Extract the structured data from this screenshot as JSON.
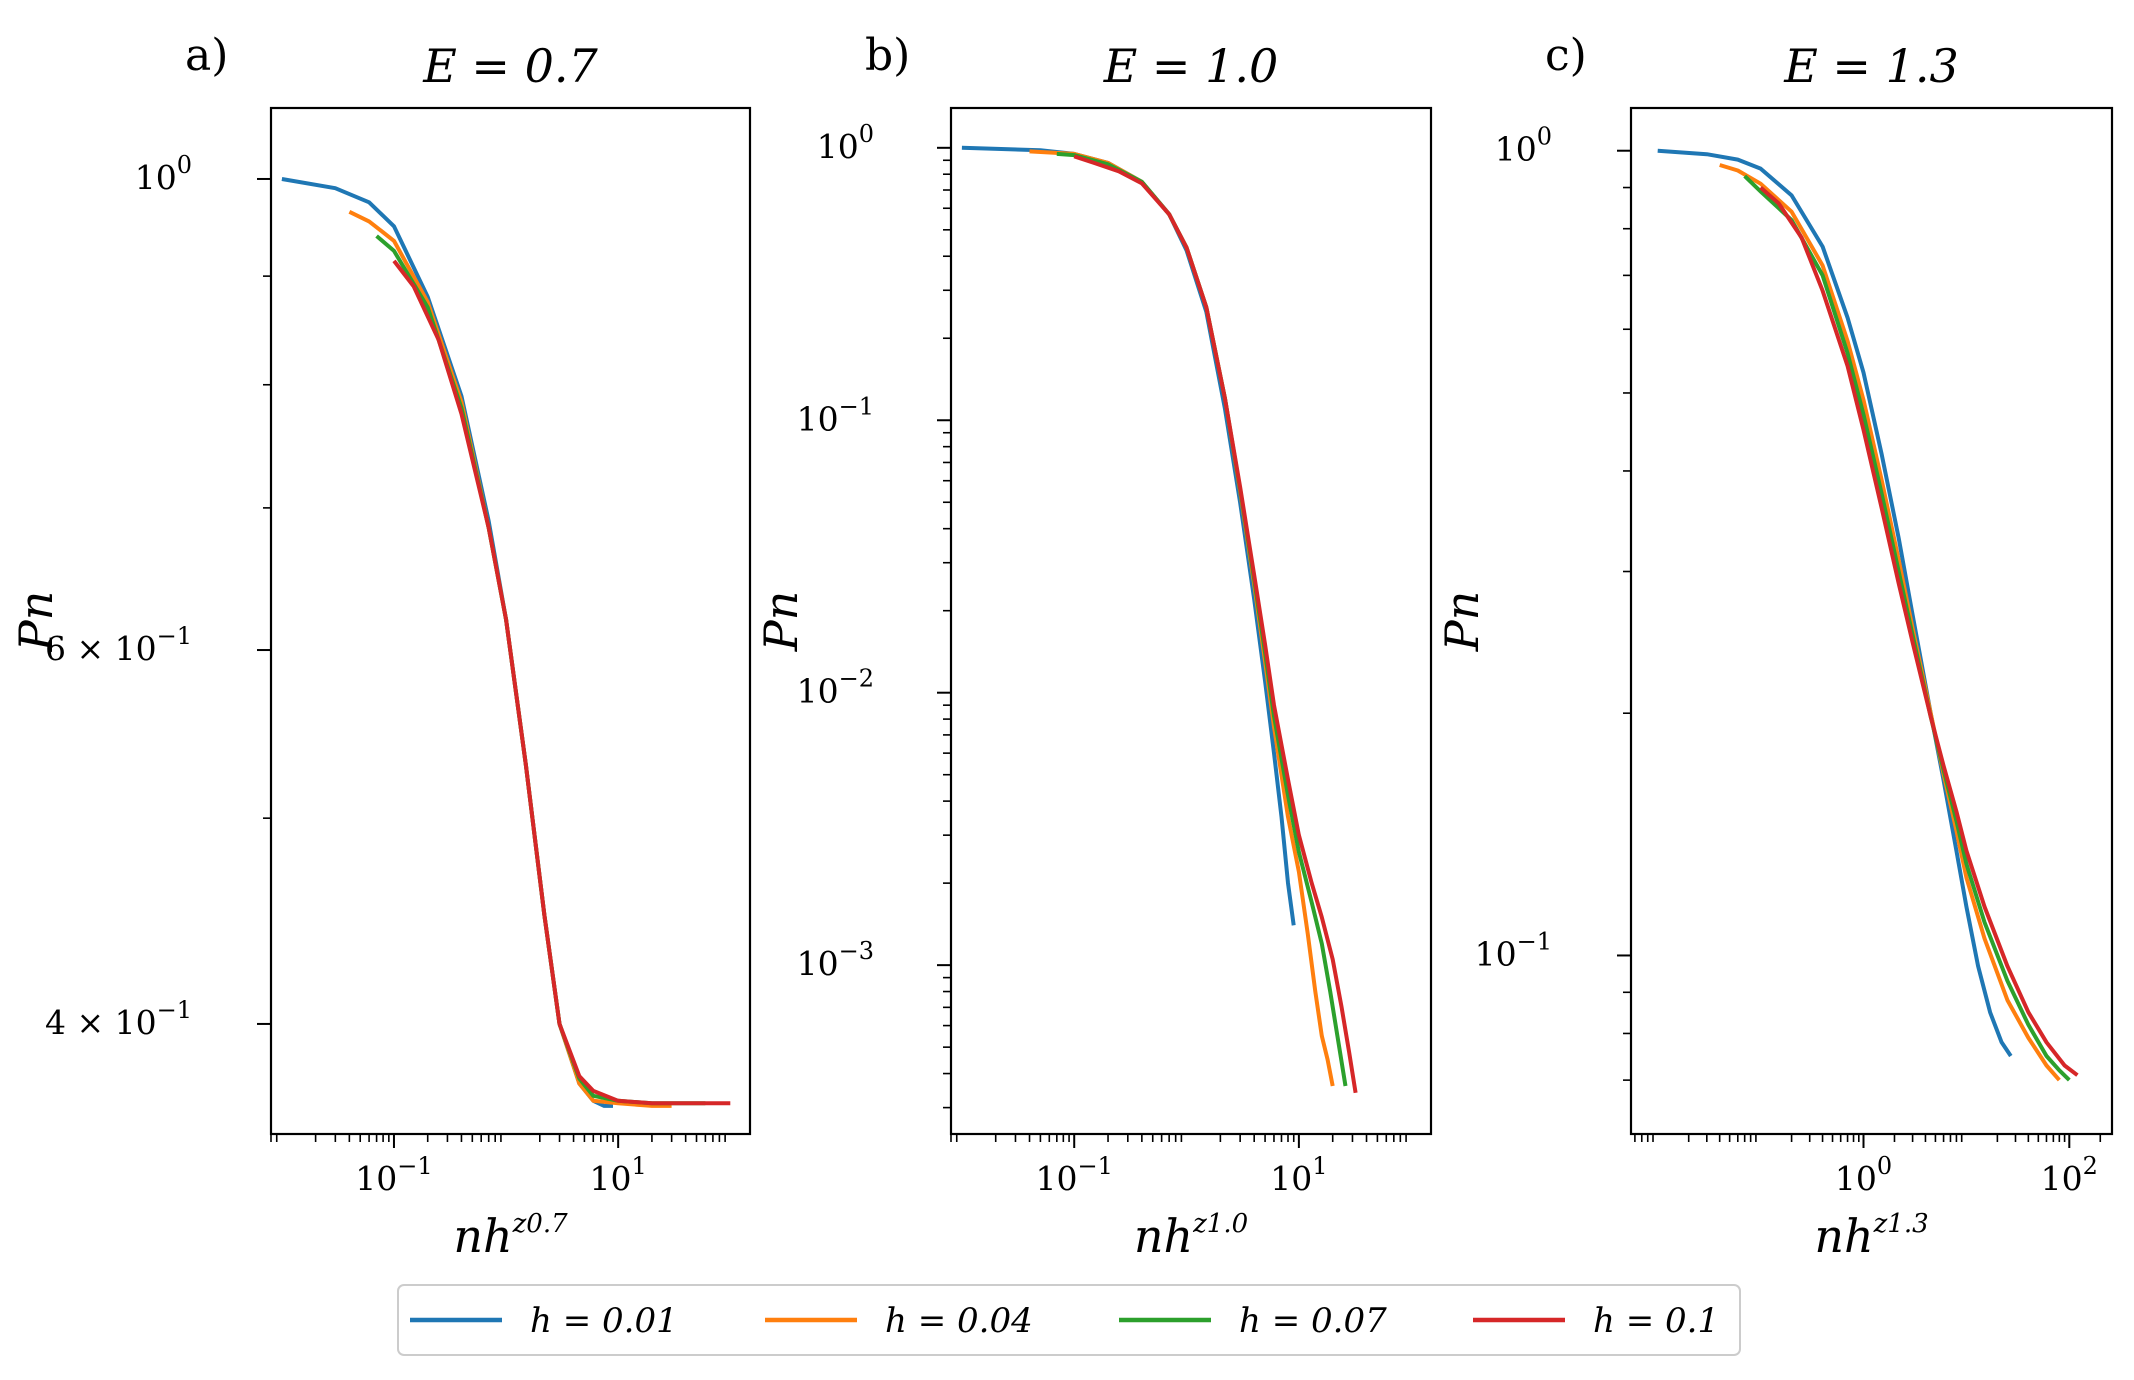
{
  "chart_data": [
    {
      "type": "line",
      "panel_label": "a)",
      "title": "E = 0.7",
      "xlabel": "nh",
      "xlabel_sup": "z0.7",
      "ylabel": "Pn",
      "xscale": "log",
      "yscale": "log",
      "xlim": [
        0.008,
        150
      ],
      "ylim": [
        0.355,
        1.08
      ],
      "xticks": [
        {
          "value": 0.1,
          "base": "10",
          "exp": "−1"
        },
        {
          "value": 10,
          "base": "10",
          "exp": "1"
        }
      ],
      "yticks": [
        {
          "value": 1.0,
          "base": "10",
          "exp": "0",
          "prefix": ""
        },
        {
          "value": 0.6,
          "base": "10",
          "exp": "−1",
          "prefix": "6 × "
        },
        {
          "value": 0.4,
          "base": "10",
          "exp": "−1",
          "prefix": "4 × "
        }
      ],
      "yminor": [
        0.5,
        0.7,
        0.8,
        0.9
      ],
      "series": [
        {
          "name": "h = 0.01",
          "color": "#1f77b4",
          "x": [
            0.01,
            0.03,
            0.06,
            0.1,
            0.2,
            0.4,
            0.7,
            1.0,
            1.5,
            2.2,
            3.0,
            4.5,
            6.0,
            7.5,
            9.0
          ],
          "y": [
            1.0,
            0.99,
            0.975,
            0.95,
            0.88,
            0.79,
            0.69,
            0.62,
            0.53,
            0.45,
            0.4,
            0.375,
            0.368,
            0.366,
            0.366
          ]
        },
        {
          "name": "h = 0.04",
          "color": "#ff7f0e",
          "x": [
            0.04,
            0.06,
            0.1,
            0.2,
            0.4,
            0.7,
            1.0,
            1.5,
            2.2,
            3.0,
            4.5,
            6.0,
            10,
            20,
            30
          ],
          "y": [
            0.965,
            0.955,
            0.935,
            0.875,
            0.785,
            0.685,
            0.62,
            0.53,
            0.45,
            0.4,
            0.375,
            0.368,
            0.367,
            0.366,
            0.366
          ]
        },
        {
          "name": "h = 0.07",
          "color": "#2ca02c",
          "x": [
            0.07,
            0.1,
            0.2,
            0.4,
            0.7,
            1.0,
            1.5,
            2.2,
            3.0,
            4.5,
            6.0,
            10,
            20,
            40,
            60
          ],
          "y": [
            0.94,
            0.925,
            0.87,
            0.78,
            0.685,
            0.62,
            0.53,
            0.45,
            0.4,
            0.377,
            0.37,
            0.368,
            0.367,
            0.367,
            0.367
          ]
        },
        {
          "name": "h = 0.1",
          "color": "#d62728",
          "x": [
            0.1,
            0.15,
            0.25,
            0.4,
            0.7,
            1.0,
            1.5,
            2.2,
            3.0,
            4.5,
            6.0,
            10,
            20,
            50,
            100
          ],
          "y": [
            0.915,
            0.89,
            0.84,
            0.775,
            0.685,
            0.62,
            0.53,
            0.45,
            0.4,
            0.378,
            0.372,
            0.368,
            0.367,
            0.367,
            0.367
          ]
        }
      ]
    },
    {
      "type": "line",
      "panel_label": "b)",
      "title": "E = 1.0",
      "xlabel": "nh",
      "xlabel_sup": "z1.0",
      "ylabel": "Pn",
      "xscale": "log",
      "yscale": "log",
      "xlim": [
        0.008,
        150
      ],
      "ylim": [
        0.00024,
        1.4
      ],
      "xticks": [
        {
          "value": 0.1,
          "base": "10",
          "exp": "−1"
        },
        {
          "value": 10,
          "base": "10",
          "exp": "1"
        }
      ],
      "yticks": [
        {
          "value": 1.0,
          "base": "10",
          "exp": "0",
          "prefix": ""
        },
        {
          "value": 0.1,
          "base": "10",
          "exp": "−1",
          "prefix": ""
        },
        {
          "value": 0.01,
          "base": "10",
          "exp": "−2",
          "prefix": ""
        },
        {
          "value": 0.001,
          "base": "10",
          "exp": "−3",
          "prefix": ""
        }
      ],
      "yminor": [
        0.0003,
        0.0004,
        0.0005,
        0.0006,
        0.0007,
        0.0008,
        0.0009,
        0.002,
        0.003,
        0.004,
        0.005,
        0.006,
        0.007,
        0.008,
        0.009,
        0.02,
        0.03,
        0.04,
        0.05,
        0.06,
        0.07,
        0.08,
        0.09,
        0.2,
        0.3,
        0.4,
        0.5,
        0.6,
        0.7,
        0.8,
        0.9
      ],
      "series": [
        {
          "name": "h = 0.01",
          "color": "#1f77b4",
          "x": [
            0.01,
            0.05,
            0.1,
            0.2,
            0.4,
            0.7,
            1.0,
            1.5,
            2.2,
            3.0,
            4.0,
            5.0,
            6.0,
            7.0,
            8.0,
            9.0
          ],
          "y": [
            1.0,
            0.98,
            0.95,
            0.88,
            0.75,
            0.57,
            0.42,
            0.25,
            0.11,
            0.05,
            0.022,
            0.011,
            0.006,
            0.0035,
            0.002,
            0.0014
          ]
        },
        {
          "name": "h = 0.04",
          "color": "#ff7f0e",
          "x": [
            0.04,
            0.1,
            0.2,
            0.4,
            0.7,
            1.0,
            1.5,
            2.2,
            3.0,
            4.0,
            5.0,
            6.0,
            8.0,
            10.0,
            12.0,
            14.0,
            16.0,
            18.0,
            20.0
          ],
          "y": [
            0.97,
            0.95,
            0.88,
            0.75,
            0.57,
            0.43,
            0.26,
            0.12,
            0.055,
            0.025,
            0.013,
            0.0075,
            0.0035,
            0.0022,
            0.0013,
            0.0008,
            0.00055,
            0.00045,
            0.00036
          ]
        },
        {
          "name": "h = 0.07",
          "color": "#2ca02c",
          "x": [
            0.07,
            0.1,
            0.2,
            0.4,
            0.7,
            1.0,
            1.5,
            2.2,
            3.0,
            4.0,
            5.0,
            6.0,
            8.0,
            10.0,
            13.0,
            16.0,
            19.0,
            22.0,
            26.0
          ],
          "y": [
            0.95,
            0.94,
            0.87,
            0.75,
            0.57,
            0.43,
            0.26,
            0.12,
            0.056,
            0.026,
            0.014,
            0.0082,
            0.0042,
            0.0026,
            0.0017,
            0.0012,
            0.0008,
            0.00055,
            0.00036
          ]
        },
        {
          "name": "h = 0.1",
          "color": "#d62728",
          "x": [
            0.1,
            0.15,
            0.25,
            0.4,
            0.7,
            1.0,
            1.5,
            2.2,
            3.0,
            4.0,
            5.0,
            6.0,
            8.0,
            10.0,
            13.0,
            16.0,
            20.0,
            24.0,
            28.0,
            32.0
          ],
          "y": [
            0.93,
            0.88,
            0.82,
            0.74,
            0.57,
            0.43,
            0.26,
            0.12,
            0.057,
            0.027,
            0.015,
            0.009,
            0.0048,
            0.003,
            0.002,
            0.0015,
            0.00105,
            0.0007,
            0.00048,
            0.00034
          ]
        }
      ]
    },
    {
      "type": "line",
      "panel_label": "c)",
      "title": "E = 1.3",
      "xlabel": "nh",
      "xlabel_sup": "z1.3",
      "ylabel": "Pn",
      "xscale": "log",
      "yscale": "log",
      "xlim": [
        0.0055,
        260
      ],
      "ylim": [
        0.06,
        1.13
      ],
      "xticks": [
        {
          "value": 1,
          "base": "10",
          "exp": "0"
        },
        {
          "value": 100,
          "base": "10",
          "exp": "2"
        }
      ],
      "yticks": [
        {
          "value": 1.0,
          "base": "10",
          "exp": "0",
          "prefix": ""
        },
        {
          "value": 0.1,
          "base": "10",
          "exp": "−1",
          "prefix": ""
        }
      ],
      "yminor": [
        0.07,
        0.08,
        0.09,
        0.2,
        0.3,
        0.4,
        0.5,
        0.6,
        0.7,
        0.8,
        0.9
      ],
      "series": [
        {
          "name": "h = 0.01",
          "color": "#1f77b4",
          "x": [
            0.01,
            0.03,
            0.06,
            0.1,
            0.2,
            0.4,
            0.7,
            1.0,
            1.5,
            2.2,
            3.0,
            4.5,
            6.0,
            8.0,
            10.0,
            13.0,
            17.0,
            22.0,
            27.0
          ],
          "y": [
            1.0,
            0.99,
            0.975,
            0.95,
            0.88,
            0.76,
            0.62,
            0.53,
            0.42,
            0.33,
            0.265,
            0.2,
            0.165,
            0.135,
            0.115,
            0.097,
            0.085,
            0.078,
            0.075
          ]
        },
        {
          "name": "h = 0.04",
          "color": "#ff7f0e",
          "x": [
            0.04,
            0.06,
            0.1,
            0.2,
            0.4,
            0.7,
            1.0,
            1.5,
            2.2,
            3.0,
            4.5,
            6.0,
            8.0,
            10.0,
            15.0,
            25.0,
            40.0,
            60.0,
            80.0
          ],
          "y": [
            0.96,
            0.945,
            0.91,
            0.84,
            0.72,
            0.58,
            0.49,
            0.39,
            0.31,
            0.255,
            0.2,
            0.168,
            0.143,
            0.125,
            0.105,
            0.088,
            0.079,
            0.073,
            0.07
          ]
        },
        {
          "name": "h = 0.07",
          "color": "#2ca02c",
          "x": [
            0.07,
            0.1,
            0.2,
            0.4,
            0.7,
            1.0,
            1.5,
            2.2,
            3.0,
            4.5,
            6.0,
            8.0,
            10.0,
            15.0,
            25.0,
            40.0,
            60.0,
            80.0,
            100.0
          ],
          "y": [
            0.93,
            0.89,
            0.82,
            0.7,
            0.56,
            0.47,
            0.375,
            0.3,
            0.25,
            0.198,
            0.17,
            0.147,
            0.13,
            0.11,
            0.093,
            0.082,
            0.075,
            0.072,
            0.07
          ]
        },
        {
          "name": "h = 0.1",
          "color": "#d62728",
          "x": [
            0.1,
            0.15,
            0.25,
            0.4,
            0.7,
            1.0,
            1.5,
            2.2,
            3.0,
            4.5,
            6.0,
            8.0,
            10.0,
            15.0,
            25.0,
            40.0,
            60.0,
            90.0,
            120.0
          ],
          "y": [
            0.9,
            0.86,
            0.78,
            0.67,
            0.54,
            0.45,
            0.36,
            0.29,
            0.245,
            0.198,
            0.172,
            0.151,
            0.135,
            0.115,
            0.097,
            0.085,
            0.078,
            0.073,
            0.071
          ]
        }
      ]
    }
  ],
  "legend": [
    {
      "label": "h = 0.01",
      "color": "#1f77b4"
    },
    {
      "label": "h = 0.04",
      "color": "#ff7f0e"
    },
    {
      "label": "h = 0.07",
      "color": "#2ca02c"
    },
    {
      "label": "h = 0.1",
      "color": "#d62728"
    }
  ]
}
